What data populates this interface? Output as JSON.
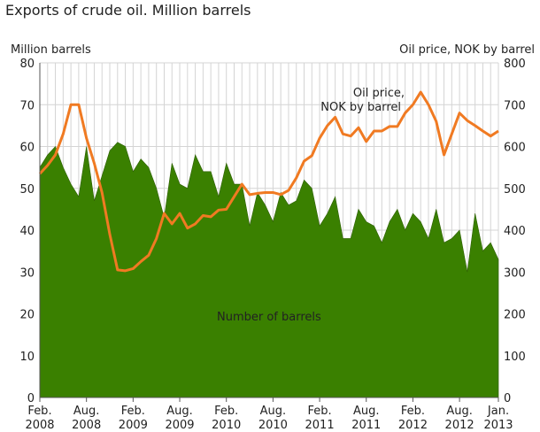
{
  "chart_data": {
    "type": "area+line",
    "title": "Exports of crude oil. Million barrels",
    "ylabel_left": "Million barrels",
    "ylabel_right": "Oil price, NOK by barrel",
    "ylim_left": [
      0,
      80
    ],
    "ylim_right": [
      0,
      800
    ],
    "yticks_left": [
      "0",
      "10",
      "20",
      "30",
      "40",
      "50",
      "60",
      "70",
      "80"
    ],
    "yticks_right": [
      "0",
      "100",
      "200",
      "300",
      "400",
      "500",
      "600",
      "700",
      "800"
    ],
    "xtick_labels": [
      {
        "month_index": 0,
        "line1": "Feb.",
        "line2": "2008"
      },
      {
        "month_index": 6,
        "line1": "Aug.",
        "line2": "2008"
      },
      {
        "month_index": 12,
        "line1": "Feb.",
        "line2": "2009"
      },
      {
        "month_index": 18,
        "line1": "Aug.",
        "line2": "2009"
      },
      {
        "month_index": 24,
        "line1": "Feb.",
        "line2": "2010"
      },
      {
        "month_index": 30,
        "line1": "Aug.",
        "line2": "2010"
      },
      {
        "month_index": 36,
        "line1": "Feb.",
        "line2": "2011"
      },
      {
        "month_index": 42,
        "line1": "Aug.",
        "line2": "2011"
      },
      {
        "month_index": 48,
        "line1": "Feb.",
        "line2": "2012"
      },
      {
        "month_index": 54,
        "line1": "Aug.",
        "line2": "2012"
      },
      {
        "month_index": 59,
        "line1": "Jan.",
        "line2": "2013"
      }
    ],
    "x_range": "Feb. 2008 – Jan. 2013, monthly",
    "grid": true,
    "series": [
      {
        "name": "Number of barrels",
        "type": "area",
        "axis": "left",
        "color": "#3a8000",
        "values": [
          55,
          58,
          60,
          55,
          51,
          48,
          60,
          47,
          53,
          59,
          61,
          60,
          54,
          57,
          55,
          50,
          43,
          56,
          51,
          50,
          58,
          54,
          54,
          48,
          56,
          51,
          51,
          41,
          49,
          46,
          42,
          49,
          46,
          47,
          52,
          50,
          41,
          44,
          48,
          38,
          38,
          45,
          42,
          41,
          37,
          42,
          45,
          40,
          44,
          42,
          38,
          45,
          37,
          38,
          40,
          30,
          44,
          35,
          37,
          33
        ]
      },
      {
        "name": "Oil price, NOK by barrel",
        "type": "line",
        "axis": "right",
        "color": "#f07a22",
        "values": [
          535,
          555,
          580,
          630,
          700,
          700,
          620,
          560,
          490,
          390,
          305,
          303,
          308,
          325,
          340,
          380,
          440,
          415,
          440,
          405,
          415,
          435,
          432,
          448,
          450,
          480,
          510,
          485,
          488,
          490,
          490,
          485,
          495,
          525,
          565,
          578,
          620,
          650,
          670,
          630,
          625,
          645,
          612,
          637,
          637,
          648,
          648,
          680,
          700,
          730,
          700,
          660,
          580,
          630,
          680,
          662,
          650,
          637,
          625,
          637
        ]
      }
    ],
    "annotations": {
      "area_label": "Number of barrels",
      "line_label_1": "Oil price,",
      "line_label_2": "NOK by barrel"
    }
  }
}
